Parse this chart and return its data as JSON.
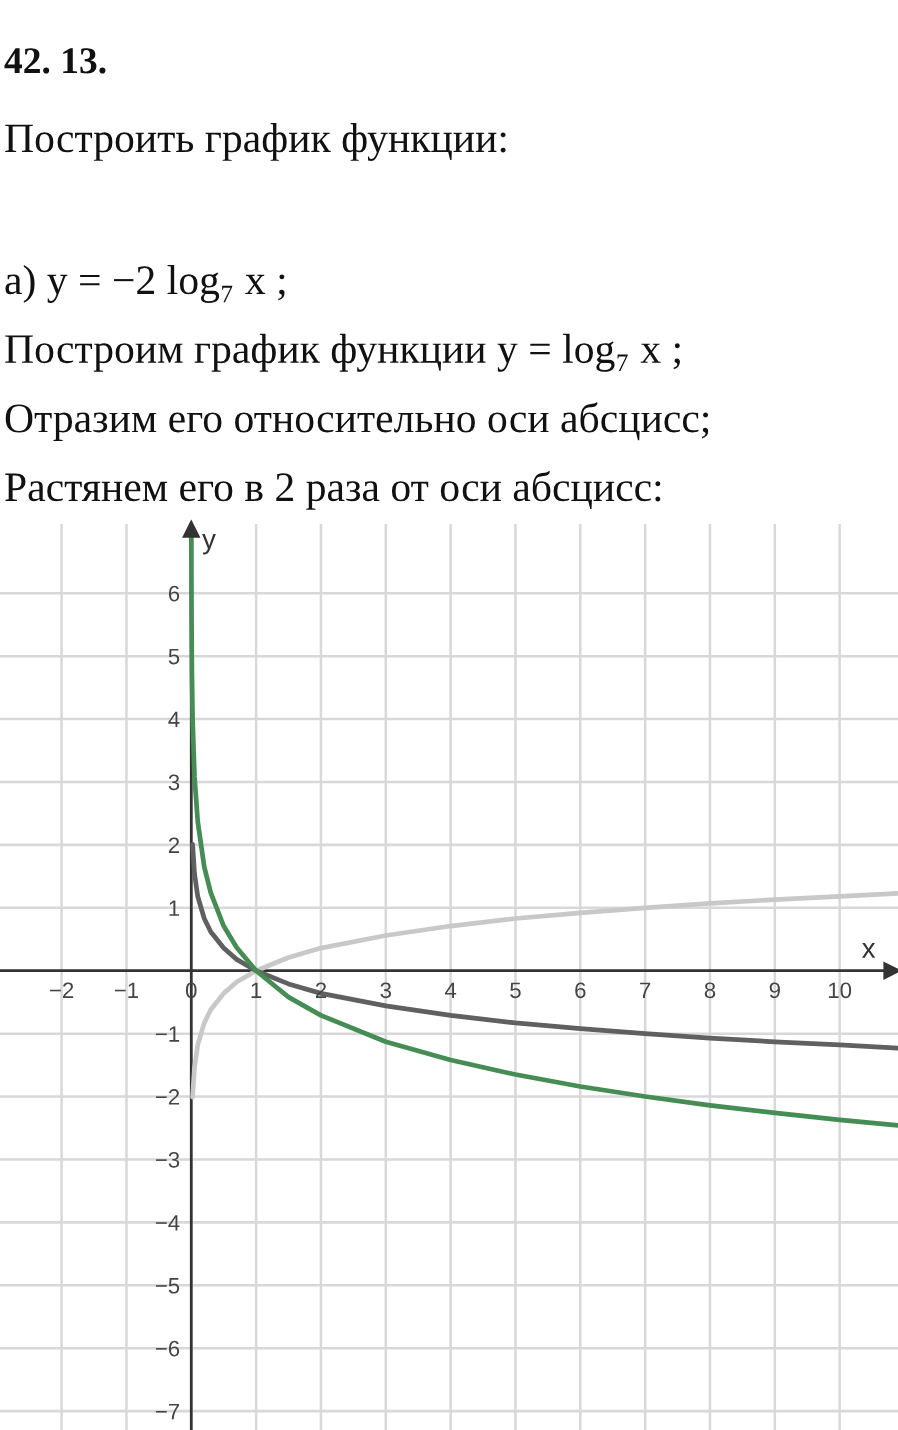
{
  "chart_data": {
    "type": "line",
    "title": "42. 13.",
    "subtitle": "Построить график функции:",
    "annotations": [
      "а) y = −2 log₇ x ;",
      "Построим график функции y = log₇ x ;",
      "Отразим его относительно оси абсцисс;",
      "Растянем его в 2 раза от оси абсцисс:"
    ],
    "xlabel": "x",
    "ylabel": "y",
    "xlim": [
      -2.95,
      10.9
    ],
    "ylim": [
      -7.3,
      7.1
    ],
    "xticks": [
      {
        "value": -2,
        "label": "−2"
      },
      {
        "value": -1,
        "label": "−1"
      },
      0,
      1,
      2,
      3,
      4,
      5,
      6,
      7,
      8,
      9,
      10
    ],
    "yticks": [
      {
        "value": -7,
        "label": "−7"
      },
      {
        "value": -6,
        "label": "−6"
      },
      {
        "value": -5,
        "label": "−5"
      },
      {
        "value": -4,
        "label": "−4"
      },
      {
        "value": -3,
        "label": "−3"
      },
      {
        "value": -2,
        "label": "−2"
      },
      {
        "value": -1,
        "label": "−1"
      },
      1,
      2,
      3,
      4,
      5,
      6
    ],
    "grid": true,
    "series": [
      {
        "color": "#c8c8c8",
        "x": [
          0.02,
          0.05,
          0.1,
          0.2,
          0.3,
          0.5,
          0.7,
          1,
          1.5,
          2,
          3,
          4,
          5,
          6,
          7,
          8,
          9,
          10,
          10.9
        ],
        "values": [
          -2.01,
          -1.54,
          -1.18,
          -0.83,
          -0.62,
          -0.36,
          -0.18,
          0,
          0.21,
          0.36,
          0.56,
          0.71,
          0.83,
          0.92,
          1,
          1.07,
          1.13,
          1.18,
          1.23
        ]
      },
      {
        "color": "#606060",
        "x": [
          0.02,
          0.05,
          0.1,
          0.2,
          0.3,
          0.5,
          0.7,
          1,
          1.5,
          2,
          3,
          4,
          5,
          6,
          7,
          8,
          9,
          10,
          10.9
        ],
        "values": [
          2.01,
          1.54,
          1.18,
          0.83,
          0.62,
          0.36,
          0.18,
          0,
          -0.21,
          -0.36,
          -0.56,
          -0.71,
          -0.83,
          -0.92,
          -1,
          -1.07,
          -1.13,
          -1.18,
          -1.23
        ]
      },
      {
        "color": "#468c55",
        "x": [
          0.0012,
          0.002,
          0.005,
          0.01,
          0.02,
          0.05,
          0.1,
          0.2,
          0.3,
          0.5,
          0.7,
          1,
          1.5,
          2,
          3,
          4,
          5,
          6,
          7,
          8,
          9,
          10,
          10.9
        ],
        "values": [
          6.91,
          6.39,
          5.45,
          4.73,
          4.02,
          3.08,
          2.37,
          1.65,
          1.24,
          0.71,
          0.37,
          0,
          -0.42,
          -0.71,
          -1.13,
          -1.42,
          -1.65,
          -1.84,
          -2,
          -2.14,
          -2.26,
          -2.37,
          -2.46
        ]
      }
    ]
  }
}
